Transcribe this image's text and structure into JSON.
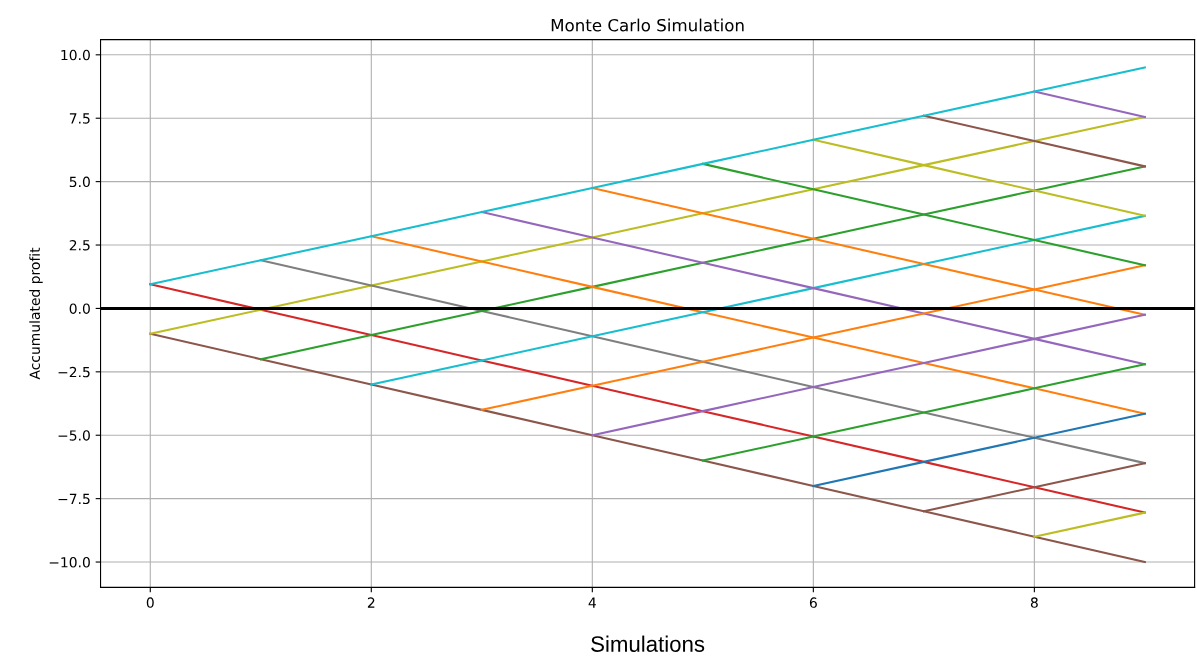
{
  "chart_data": {
    "type": "line",
    "title": "Monte Carlo Simulation",
    "xlabel": "Simulations",
    "ylabel": "Accumulated profit",
    "x": [
      0,
      1,
      2,
      3,
      4,
      5,
      6,
      7,
      8,
      9
    ],
    "series": [
      {
        "color": "#17becf",
        "values": [
          0.95,
          1.9,
          2.85,
          3.8,
          4.75,
          5.7,
          6.65,
          7.6,
          8.55,
          9.5
        ]
      },
      {
        "color": "#8c564b",
        "values": [
          -1,
          -2,
          -3,
          -4,
          -5,
          -6,
          -7,
          -8,
          -9,
          -10
        ]
      },
      {
        "color": "#d62728",
        "values": [
          0.95,
          -0.05,
          -1.05,
          -2.05,
          -3.05,
          -4.05,
          -5.05,
          -6.05,
          -7.05,
          -8.05
        ]
      },
      {
        "color": "#bcbd22",
        "values": [
          -1,
          -0.05,
          0.9,
          1.85,
          2.8,
          3.75,
          4.7,
          5.65,
          6.6,
          7.55
        ]
      },
      {
        "color": "#7f7f7f",
        "values": [
          null,
          1.9,
          0.9,
          -0.1,
          -1.1,
          -2.1,
          -3.1,
          -4.1,
          -5.1,
          -6.1
        ]
      },
      {
        "color": "#2ca02c",
        "values": [
          null,
          -2,
          -1.05,
          -0.1,
          0.85,
          1.8,
          2.75,
          3.7,
          4.65,
          5.6
        ]
      },
      {
        "color": "#ff7f0e",
        "values": [
          null,
          null,
          2.85,
          1.85,
          0.85,
          -0.15,
          -1.15,
          -2.15,
          -3.15,
          -4.15
        ]
      },
      {
        "color": "#17becf",
        "values": [
          null,
          null,
          -3,
          -2.05,
          -1.1,
          -0.15,
          0.8,
          1.75,
          2.7,
          3.65
        ]
      },
      {
        "color": "#9467bd",
        "values": [
          null,
          null,
          null,
          3.8,
          2.8,
          1.8,
          0.8,
          -0.2,
          -1.2,
          -2.2
        ]
      },
      {
        "color": "#ff7f0e",
        "values": [
          null,
          null,
          null,
          -4,
          -3.05,
          -2.1,
          -1.15,
          -0.2,
          0.75,
          1.7
        ]
      },
      {
        "color": "#ff7f0e",
        "values": [
          null,
          null,
          null,
          null,
          4.75,
          3.75,
          2.75,
          1.75,
          0.75,
          -0.25
        ]
      },
      {
        "color": "#9467bd",
        "values": [
          null,
          null,
          null,
          null,
          -5,
          -4.05,
          -3.1,
          -2.15,
          -1.2,
          -0.25
        ]
      },
      {
        "color": "#2ca02c",
        "values": [
          null,
          null,
          null,
          null,
          null,
          5.7,
          4.7,
          3.7,
          2.7,
          1.7
        ]
      },
      {
        "color": "#2ca02c",
        "values": [
          null,
          null,
          null,
          null,
          null,
          -6,
          -5.05,
          -4.1,
          -3.15,
          -2.2
        ]
      },
      {
        "color": "#bcbd22",
        "values": [
          null,
          null,
          null,
          null,
          null,
          null,
          6.65,
          5.65,
          4.65,
          3.65
        ]
      },
      {
        "color": "#1f77b4",
        "values": [
          null,
          null,
          null,
          null,
          null,
          null,
          -7,
          -6.05,
          -5.1,
          -4.15
        ]
      },
      {
        "color": "#8c564b",
        "values": [
          null,
          null,
          null,
          null,
          null,
          null,
          null,
          7.6,
          6.6,
          5.6
        ]
      },
      {
        "color": "#8c564b",
        "values": [
          null,
          null,
          null,
          null,
          null,
          null,
          null,
          -8,
          -7.05,
          -6.1
        ]
      },
      {
        "color": "#9467bd",
        "values": [
          null,
          null,
          null,
          null,
          null,
          null,
          null,
          null,
          8.55,
          7.55
        ]
      },
      {
        "color": "#bcbd22",
        "values": [
          null,
          null,
          null,
          null,
          null,
          null,
          null,
          null,
          -9,
          -8.05
        ]
      }
    ],
    "xlim": [
      -0.45,
      9.45
    ],
    "xticks": [
      0,
      2,
      4,
      6,
      8
    ],
    "ylim": [
      -11,
      10.6
    ],
    "yticks": [
      {
        "value": -10,
        "label": "−10.0"
      },
      {
        "value": -7.5,
        "label": "−7.5"
      },
      {
        "value": -5,
        "label": "−5.0"
      },
      {
        "value": -2.5,
        "label": "−2.5"
      },
      {
        "value": 0,
        "label": "0.0"
      },
      {
        "value": 2.5,
        "label": "2.5"
      },
      {
        "value": 5,
        "label": "5.0"
      },
      {
        "value": 7.5,
        "label": "7.5"
      },
      {
        "value": 10,
        "label": "10.0"
      }
    ],
    "ref_lines": [
      {
        "axis": "y",
        "value": 0,
        "color": "#000000"
      }
    ],
    "grid": true,
    "marker": "none",
    "line_style": "solid"
  }
}
